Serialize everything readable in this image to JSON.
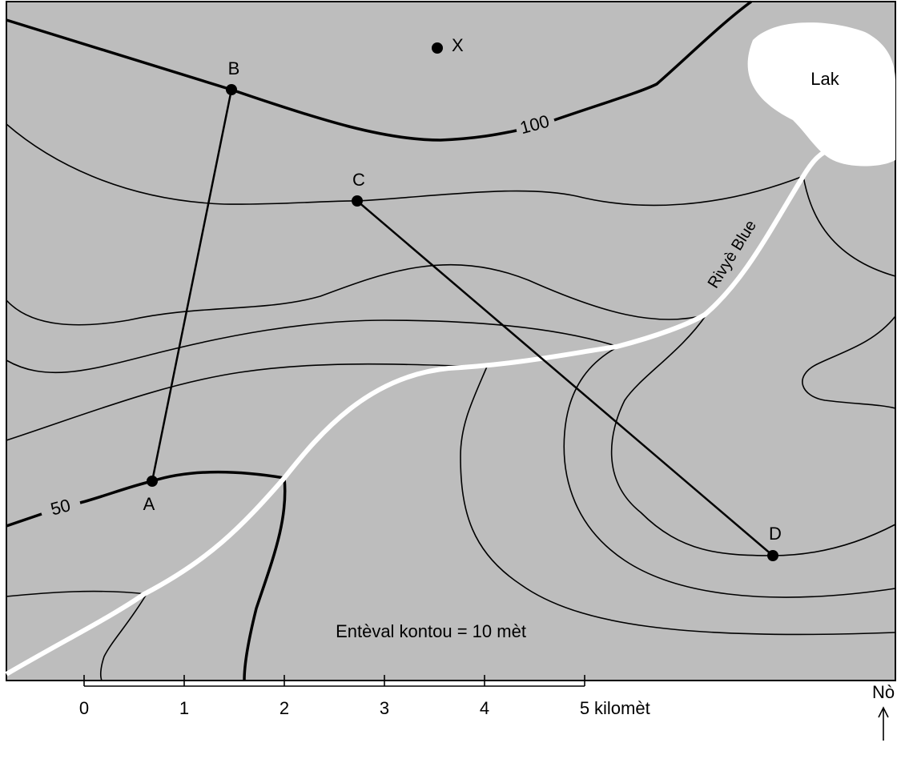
{
  "map": {
    "points": [
      "B",
      "X",
      "C",
      "A",
      "D"
    ],
    "contour_labels": [
      100,
      50
    ],
    "lake": "Lak",
    "river": "Rivyè Blue",
    "caption": "Entèval kontou = 10 mèt",
    "scale": {
      "ticks": [
        0,
        1,
        2,
        3,
        4,
        5
      ],
      "unit": "kilomèt"
    },
    "north": "Nò"
  }
}
